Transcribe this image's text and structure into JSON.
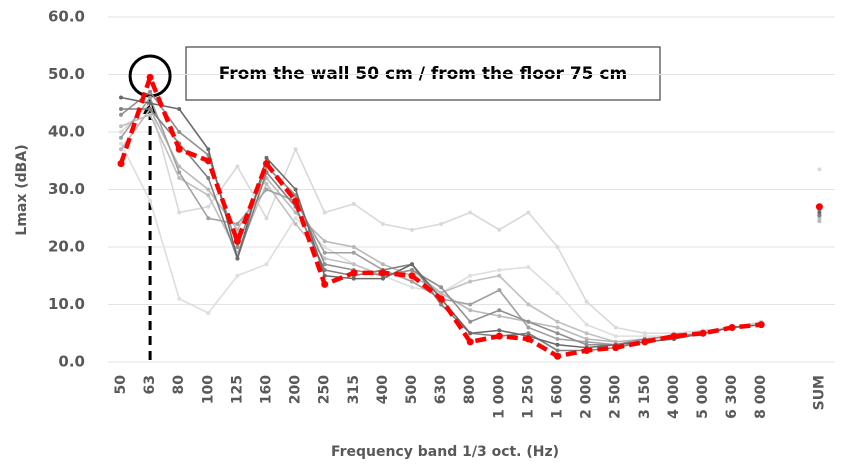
{
  "chart_data": {
    "type": "line",
    "categories": [
      "50",
      "63",
      "80",
      "100",
      "125",
      "160",
      "200",
      "250",
      "315",
      "400",
      "500",
      "630",
      "800",
      "1 000",
      "1 250",
      "1 600",
      "2 000",
      "2 500",
      "3 150",
      "4 000",
      "5 000",
      "6 300",
      "8 000",
      null,
      "SUM"
    ],
    "series": [
      {
        "color": "#d9d9d9",
        "values": [
          40,
          45,
          26,
          27,
          34,
          25,
          37,
          26,
          27.5,
          24,
          23,
          24,
          26,
          23,
          26,
          20,
          10.5,
          6,
          5,
          5,
          5.5,
          6,
          7,
          null,
          33.5
        ]
      },
      {
        "color": "#dedede",
        "values": [
          38,
          28,
          11,
          8.5,
          15,
          17,
          25,
          20,
          17,
          15,
          13,
          12,
          15,
          16,
          16.5,
          12,
          6.5,
          4.5,
          4.5,
          4.5,
          5,
          6,
          6.5,
          null,
          25
        ]
      },
      {
        "color": "#c0c0c0",
        "values": [
          41,
          43,
          32,
          29,
          19,
          31,
          24,
          18,
          17,
          15,
          16,
          12,
          14,
          15,
          10,
          7,
          5,
          3.5,
          4,
          4.5,
          5,
          6,
          6.5,
          null,
          25
        ]
      },
      {
        "color": "#b8b8b8",
        "values": [
          37,
          44,
          34,
          30,
          23,
          32,
          26,
          21,
          20,
          17,
          15,
          12,
          9,
          8,
          7,
          6,
          4,
          3.5,
          4,
          4.5,
          5,
          6,
          6.5,
          null,
          24.5
        ]
      },
      {
        "color": "#a0a0a0",
        "values": [
          39,
          46,
          33,
          25,
          24,
          30,
          28,
          19,
          19,
          16,
          14,
          11,
          10,
          12.5,
          6,
          4,
          3.5,
          3,
          4,
          4.5,
          5,
          6,
          6.5,
          null,
          25.5
        ]
      },
      {
        "color": "#909090",
        "values": [
          43,
          47,
          40,
          36,
          20,
          34,
          29,
          17,
          16,
          15,
          16,
          13,
          7,
          9,
          7,
          5,
          3,
          3,
          4,
          4.5,
          5,
          6,
          6.5,
          null,
          26.5
        ]
      },
      {
        "color": "#808080",
        "values": [
          44,
          44,
          38,
          32,
          18,
          33,
          27,
          16,
          15,
          16,
          17,
          10,
          5,
          4.5,
          5,
          2,
          2,
          2.5,
          3.5,
          4,
          5,
          6,
          6.5,
          null,
          25.5
        ]
      },
      {
        "color": "#6a6a6a",
        "values": [
          46,
          45,
          44,
          37,
          18,
          35.5,
          30,
          15,
          14.5,
          14.5,
          17,
          11,
          5,
          5.5,
          4.5,
          3,
          2.5,
          3,
          3.5,
          4,
          5,
          6,
          6.5,
          null,
          26
        ]
      },
      {
        "color": "#ff0000",
        "dashed": true,
        "values": [
          34.5,
          49.5,
          37,
          35,
          21,
          34.5,
          28,
          13.5,
          15.5,
          15.5,
          15,
          11,
          3.5,
          4.5,
          4,
          1,
          2,
          2.5,
          3.5,
          4.5,
          5,
          6,
          6.5,
          null,
          27
        ]
      }
    ],
    "ylim": [
      0,
      60
    ],
    "yticks": [
      {
        "value": 0,
        "label": "0.0"
      },
      {
        "value": 10,
        "label": "10.0"
      },
      {
        "value": 20,
        "label": "20.0"
      },
      {
        "value": 30,
        "label": "30.0"
      },
      {
        "value": 40,
        "label": "40.0"
      },
      {
        "value": 50,
        "label": "50.0"
      },
      {
        "value": 60,
        "label": "60.0"
      }
    ],
    "grid": true,
    "y_label": "Lmax (dBA)",
    "x_label": "Frequency band 1/3 oct. (Hz)",
    "annotation": "From the wall 50 cm / from the floor 75 cm"
  }
}
